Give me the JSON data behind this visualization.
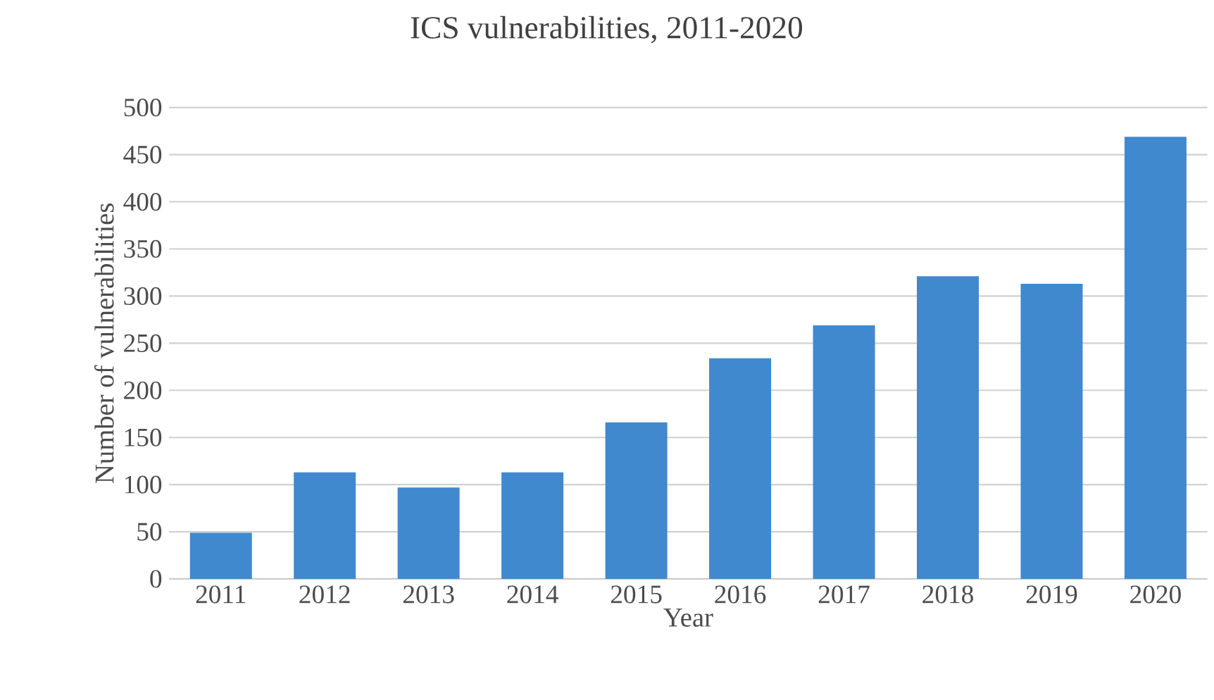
{
  "chart_data": {
    "type": "bar",
    "title": "ICS vulnerabilities, 2011-2020",
    "xlabel": "Year",
    "ylabel": "Number of vulnerabilities",
    "categories": [
      "2011",
      "2012",
      "2013",
      "2014",
      "2015",
      "2016",
      "2017",
      "2018",
      "2019",
      "2020"
    ],
    "values": [
      49,
      113,
      97,
      113,
      166,
      234,
      269,
      321,
      313,
      469
    ],
    "color": "#4189cf",
    "ylim": [
      0,
      500
    ],
    "yticks": [
      0,
      50,
      100,
      150,
      200,
      250,
      300,
      350,
      400,
      450,
      500
    ],
    "grid": "y"
  }
}
